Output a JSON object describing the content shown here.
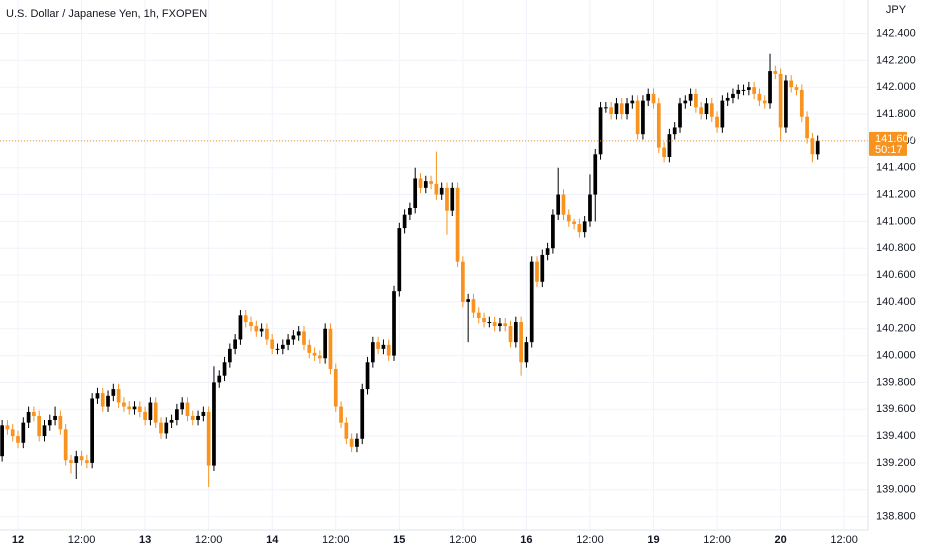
{
  "chart_data": {
    "type": "candlestick",
    "title": "U.S. Dollar / Japanese Yen, 1h, FXOPEN",
    "currency": "JPY",
    "up_color": "#000000",
    "down_color": "#f7931e",
    "grid": true,
    "last_price": {
      "value": 141.6,
      "label": "141.600"
    },
    "countdown": "50:17",
    "xlim": [
      -3.4,
      160.5
    ],
    "xticks": [
      {
        "value": 0,
        "label": "12"
      },
      {
        "value": 12,
        "label": "12:00"
      },
      {
        "value": 24,
        "label": "13"
      },
      {
        "value": 36,
        "label": "12:00"
      },
      {
        "value": 48,
        "label": "14"
      },
      {
        "value": 60,
        "label": "12:00"
      },
      {
        "value": 72,
        "label": "15"
      },
      {
        "value": 84,
        "label": "12:00"
      },
      {
        "value": 96,
        "label": "16"
      },
      {
        "value": 108,
        "label": "12:00"
      },
      {
        "value": 120,
        "label": "19"
      },
      {
        "value": 132,
        "label": "12:00"
      },
      {
        "value": 144,
        "label": "20"
      },
      {
        "value": 156,
        "label": "12:00"
      }
    ],
    "ylim": [
      138.7,
      142.65
    ],
    "yticks": [
      {
        "value": 138.8,
        "label": "138.800"
      },
      {
        "value": 139.0,
        "label": "139.000"
      },
      {
        "value": 139.2,
        "label": "139.200"
      },
      {
        "value": 139.4,
        "label": "139.400"
      },
      {
        "value": 139.6,
        "label": "139.600"
      },
      {
        "value": 139.8,
        "label": "139.800"
      },
      {
        "value": 140.0,
        "label": "140.000"
      },
      {
        "value": 140.2,
        "label": "140.200"
      },
      {
        "value": 140.4,
        "label": "140.400"
      },
      {
        "value": 140.6,
        "label": "140.600"
      },
      {
        "value": 140.8,
        "label": "140.800"
      },
      {
        "value": 141.0,
        "label": "141.000"
      },
      {
        "value": 141.2,
        "label": "141.200"
      },
      {
        "value": 141.4,
        "label": "141.400"
      },
      {
        "value": 141.6,
        "label": "141.600"
      },
      {
        "value": 141.8,
        "label": "141.800"
      },
      {
        "value": 142.0,
        "label": "142.000"
      },
      {
        "value": 142.2,
        "label": "142.200"
      },
      {
        "value": 142.4,
        "label": "142.400"
      }
    ],
    "x": [
      -3,
      -2,
      -1,
      0,
      1,
      2,
      3,
      4,
      5,
      6,
      7,
      8,
      9,
      10,
      11,
      12,
      13,
      14,
      15,
      16,
      17,
      18,
      19,
      20,
      21,
      22,
      23,
      24,
      25,
      26,
      27,
      28,
      29,
      30,
      31,
      32,
      33,
      34,
      35,
      36,
      37,
      38,
      39,
      40,
      41,
      42,
      43,
      44,
      45,
      46,
      47,
      48,
      49,
      50,
      51,
      52,
      53,
      54,
      55,
      56,
      57,
      58,
      59,
      60,
      61,
      62,
      63,
      64,
      65,
      66,
      67,
      68,
      69,
      70,
      71,
      72,
      73,
      74,
      75,
      76,
      77,
      78,
      79,
      80,
      81,
      82,
      83,
      84,
      85,
      86,
      87,
      88,
      89,
      90,
      91,
      92,
      93,
      94,
      95,
      96,
      97,
      98,
      99,
      100,
      101,
      102,
      103,
      104,
      105,
      106,
      107,
      108,
      109,
      110,
      111,
      112,
      113,
      114,
      115,
      116,
      117,
      118,
      119,
      120,
      121,
      122,
      123,
      124,
      125,
      126,
      127,
      128,
      129,
      130,
      131,
      132,
      133,
      134,
      135,
      136,
      137,
      138,
      139,
      140,
      141,
      142,
      143,
      144,
      145,
      146,
      147,
      148,
      149,
      150,
      151
    ],
    "open": [
      139.25,
      139.48,
      139.45,
      139.4,
      139.35,
      139.5,
      139.58,
      139.55,
      139.4,
      139.48,
      139.52,
      139.55,
      139.45,
      139.22,
      139.2,
      139.25,
      139.22,
      139.2,
      139.68,
      139.72,
      139.62,
      139.7,
      139.75,
      139.65,
      139.62,
      139.6,
      139.62,
      139.58,
      139.52,
      139.65,
      139.5,
      139.42,
      139.5,
      139.52,
      139.6,
      139.65,
      139.55,
      139.52,
      139.55,
      139.58,
      139.18,
      139.8,
      139.85,
      139.95,
      140.05,
      140.12,
      140.3,
      140.25,
      140.22,
      140.18,
      140.2,
      140.12,
      140.05,
      140.05,
      140.08,
      140.12,
      140.15,
      140.18,
      140.08,
      140.02,
      140.0,
      139.98,
      140.2,
      139.9,
      139.62,
      139.5,
      139.38,
      139.32,
      139.38,
      139.75,
      139.95,
      140.1,
      140.05,
      140.08,
      140.0,
      140.48,
      140.95,
      141.05,
      141.1,
      141.32,
      141.25,
      141.3,
      141.28,
      141.2,
      141.25,
      141.08,
      141.25,
      140.7,
      140.4,
      140.42,
      140.32,
      140.28,
      140.25,
      140.25,
      140.22,
      140.24,
      140.22,
      140.1,
      140.25,
      139.95,
      140.1,
      140.7,
      140.55,
      140.75,
      140.8,
      141.05,
      141.2,
      141.05,
      141.0,
      140.98,
      140.92,
      141.0,
      141.2,
      141.5,
      141.85,
      141.85,
      141.8,
      141.88,
      141.8,
      141.88,
      141.9,
      141.65,
      141.9,
      141.95,
      141.88,
      141.55,
      141.48,
      141.65,
      141.7,
      141.88,
      141.9,
      141.95,
      141.85,
      141.8,
      141.88,
      141.78,
      141.7,
      141.9,
      141.92,
      141.95,
      141.98,
      141.98,
      142.0,
      141.95,
      141.9,
      141.88,
      142.12,
      142.1,
      141.7,
      142.05,
      142.0,
      141.98,
      141.78,
      141.62,
      141.5
    ],
    "high": [
      139.52,
      139.52,
      139.49,
      139.44,
      139.54,
      139.62,
      139.62,
      139.59,
      139.52,
      139.56,
      139.62,
      139.59,
      139.49,
      139.26,
      139.29,
      139.29,
      139.26,
      139.72,
      139.76,
      139.76,
      139.74,
      139.79,
      139.79,
      139.69,
      139.66,
      139.66,
      139.66,
      139.62,
      139.69,
      139.69,
      139.54,
      139.54,
      139.56,
      139.64,
      139.69,
      139.69,
      139.59,
      139.59,
      139.62,
      139.62,
      139.92,
      139.89,
      139.99,
      140.09,
      140.16,
      140.34,
      140.34,
      140.29,
      140.26,
      140.24,
      140.24,
      140.16,
      140.09,
      140.12,
      140.16,
      140.19,
      140.22,
      140.22,
      140.12,
      140.06,
      140.04,
      140.24,
      140.24,
      139.94,
      139.66,
      139.54,
      139.42,
      139.42,
      139.79,
      139.99,
      140.14,
      140.14,
      140.12,
      140.12,
      140.52,
      140.99,
      141.09,
      141.14,
      141.4,
      141.36,
      141.34,
      141.34,
      141.52,
      141.29,
      141.29,
      141.29,
      141.29,
      140.74,
      140.46,
      140.46,
      140.36,
      140.32,
      140.29,
      140.29,
      140.28,
      140.28,
      140.26,
      140.29,
      140.29,
      140.14,
      140.74,
      140.74,
      140.79,
      140.84,
      141.09,
      141.4,
      141.24,
      141.09,
      141.02,
      141.02,
      141.04,
      141.35,
      141.54,
      141.89,
      141.89,
      141.89,
      141.92,
      141.92,
      141.92,
      141.94,
      141.94,
      141.94,
      141.99,
      141.99,
      141.92,
      141.59,
      141.69,
      141.74,
      141.92,
      141.94,
      141.99,
      141.99,
      141.89,
      141.92,
      141.92,
      141.82,
      141.94,
      141.96,
      141.99,
      142.02,
      142.02,
      142.04,
      142.04,
      141.99,
      141.94,
      142.25,
      142.16,
      142.14,
      142.09,
      142.09,
      142.02,
      142.02,
      141.82,
      141.66,
      141.64
    ],
    "low": [
      139.21,
      139.41,
      139.36,
      139.31,
      139.31,
      139.46,
      139.51,
      139.36,
      139.36,
      139.44,
      139.48,
      139.41,
      139.18,
      139.12,
      139.08,
      139.18,
      139.16,
      139.16,
      139.64,
      139.58,
      139.58,
      139.66,
      139.61,
      139.58,
      139.56,
      139.56,
      139.54,
      139.48,
      139.48,
      139.46,
      139.38,
      139.38,
      139.46,
      139.48,
      139.56,
      139.51,
      139.48,
      139.48,
      139.51,
      139.02,
      139.14,
      139.76,
      139.81,
      139.91,
      140.01,
      140.08,
      140.21,
      140.18,
      140.14,
      140.14,
      140.08,
      140.01,
      140.01,
      140.01,
      140.04,
      140.08,
      140.11,
      140.04,
      139.98,
      139.96,
      139.94,
      139.94,
      139.86,
      139.58,
      139.46,
      139.34,
      139.28,
      139.28,
      139.34,
      139.71,
      139.91,
      140.01,
      140.01,
      139.96,
      139.96,
      140.44,
      140.91,
      141.01,
      141.06,
      141.21,
      141.21,
      141.24,
      141.16,
      141.16,
      140.9,
      141.04,
      140.66,
      140.36,
      140.1,
      140.28,
      140.24,
      140.21,
      140.21,
      140.18,
      140.18,
      140.18,
      140.06,
      140.06,
      139.85,
      139.91,
      140.06,
      140.51,
      140.51,
      140.71,
      140.76,
      141.01,
      141.01,
      140.96,
      140.94,
      140.88,
      140.88,
      140.96,
      141.0,
      141.46,
      141.81,
      141.76,
      141.76,
      141.76,
      141.76,
      141.84,
      141.61,
      141.61,
      141.86,
      141.84,
      141.51,
      141.44,
      141.44,
      141.61,
      141.66,
      141.84,
      141.86,
      141.81,
      141.76,
      141.76,
      141.74,
      141.66,
      141.66,
      141.86,
      141.88,
      141.91,
      141.94,
      141.94,
      141.91,
      141.86,
      141.84,
      141.84,
      142.06,
      141.6,
      141.66,
      141.96,
      141.94,
      141.74,
      141.58,
      141.44,
      141.46
    ],
    "close": [
      139.48,
      139.45,
      139.4,
      139.35,
      139.5,
      139.58,
      139.55,
      139.4,
      139.48,
      139.52,
      139.55,
      139.45,
      139.22,
      139.2,
      139.25,
      139.22,
      139.2,
      139.68,
      139.72,
      139.62,
      139.7,
      139.75,
      139.65,
      139.62,
      139.6,
      139.62,
      139.58,
      139.52,
      139.65,
      139.5,
      139.42,
      139.5,
      139.52,
      139.6,
      139.65,
      139.55,
      139.52,
      139.55,
      139.58,
      139.18,
      139.8,
      139.85,
      139.95,
      140.05,
      140.12,
      140.3,
      140.25,
      140.22,
      140.18,
      140.2,
      140.12,
      140.05,
      140.05,
      140.08,
      140.12,
      140.15,
      140.18,
      140.08,
      140.02,
      140.0,
      139.98,
      140.2,
      139.9,
      139.62,
      139.5,
      139.38,
      139.32,
      139.38,
      139.75,
      139.95,
      140.1,
      140.05,
      140.08,
      140.0,
      140.48,
      140.95,
      141.05,
      141.1,
      141.32,
      141.25,
      141.3,
      141.28,
      141.2,
      141.25,
      141.08,
      141.25,
      140.7,
      140.4,
      140.42,
      140.32,
      140.28,
      140.25,
      140.25,
      140.22,
      140.24,
      140.22,
      140.1,
      140.25,
      139.95,
      140.1,
      140.7,
      140.55,
      140.75,
      140.8,
      141.05,
      141.2,
      141.05,
      141.0,
      140.98,
      140.92,
      141.0,
      141.2,
      141.5,
      141.85,
      141.85,
      141.8,
      141.88,
      141.8,
      141.88,
      141.9,
      141.65,
      141.9,
      141.95,
      141.88,
      141.55,
      141.48,
      141.65,
      141.7,
      141.88,
      141.9,
      141.95,
      141.85,
      141.8,
      141.88,
      141.78,
      141.7,
      141.9,
      141.92,
      141.95,
      141.98,
      141.98,
      142.0,
      141.95,
      141.9,
      141.88,
      142.12,
      142.1,
      141.7,
      142.05,
      142.0,
      141.98,
      141.78,
      141.62,
      141.5,
      141.6
    ]
  }
}
